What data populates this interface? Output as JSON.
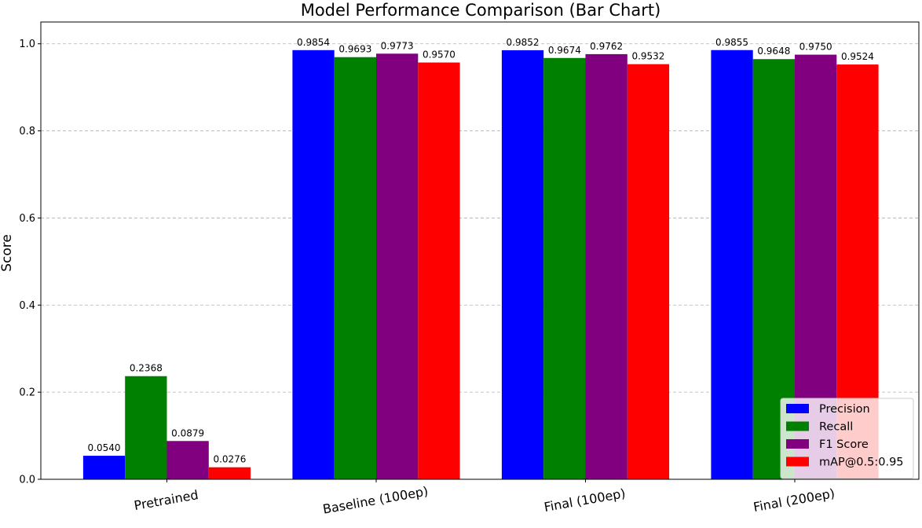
{
  "chart_data": {
    "type": "bar",
    "title": "Model Performance Comparison (Bar Chart)",
    "xlabel": "",
    "ylabel": "Score",
    "ylim": [
      0,
      1.05
    ],
    "yticks": [
      "0.0",
      "0.2",
      "0.4",
      "0.6",
      "0.8",
      "1.0"
    ],
    "grid": "y-dashed",
    "legend_position": "lower-right",
    "categories": [
      "Pretrained",
      "Baseline (100ep)",
      "Final (100ep)",
      "Final (200ep)"
    ],
    "series": [
      {
        "name": "Precision",
        "color": "#0000ff",
        "values": [
          0.054,
          0.9854,
          0.9852,
          0.9855
        ],
        "labels": [
          "0.0540",
          "0.9854",
          "0.9852",
          "0.9855"
        ]
      },
      {
        "name": "Recall",
        "color": "#008000",
        "values": [
          0.2368,
          0.9693,
          0.9674,
          0.9648
        ],
        "labels": [
          "0.2368",
          "0.9693",
          "0.9674",
          "0.9648"
        ]
      },
      {
        "name": "F1 Score",
        "color": "#800080",
        "values": [
          0.0879,
          0.9773,
          0.9762,
          0.975
        ],
        "labels": [
          "0.0879",
          "0.9773",
          "0.9762",
          "0.9750"
        ]
      },
      {
        "name": "mAP@0.5:0.95",
        "color": "#ff0000",
        "values": [
          0.0276,
          0.957,
          0.9532,
          0.9524
        ],
        "labels": [
          "0.0276",
          "0.9570",
          "0.9532",
          "0.9524"
        ]
      }
    ]
  }
}
